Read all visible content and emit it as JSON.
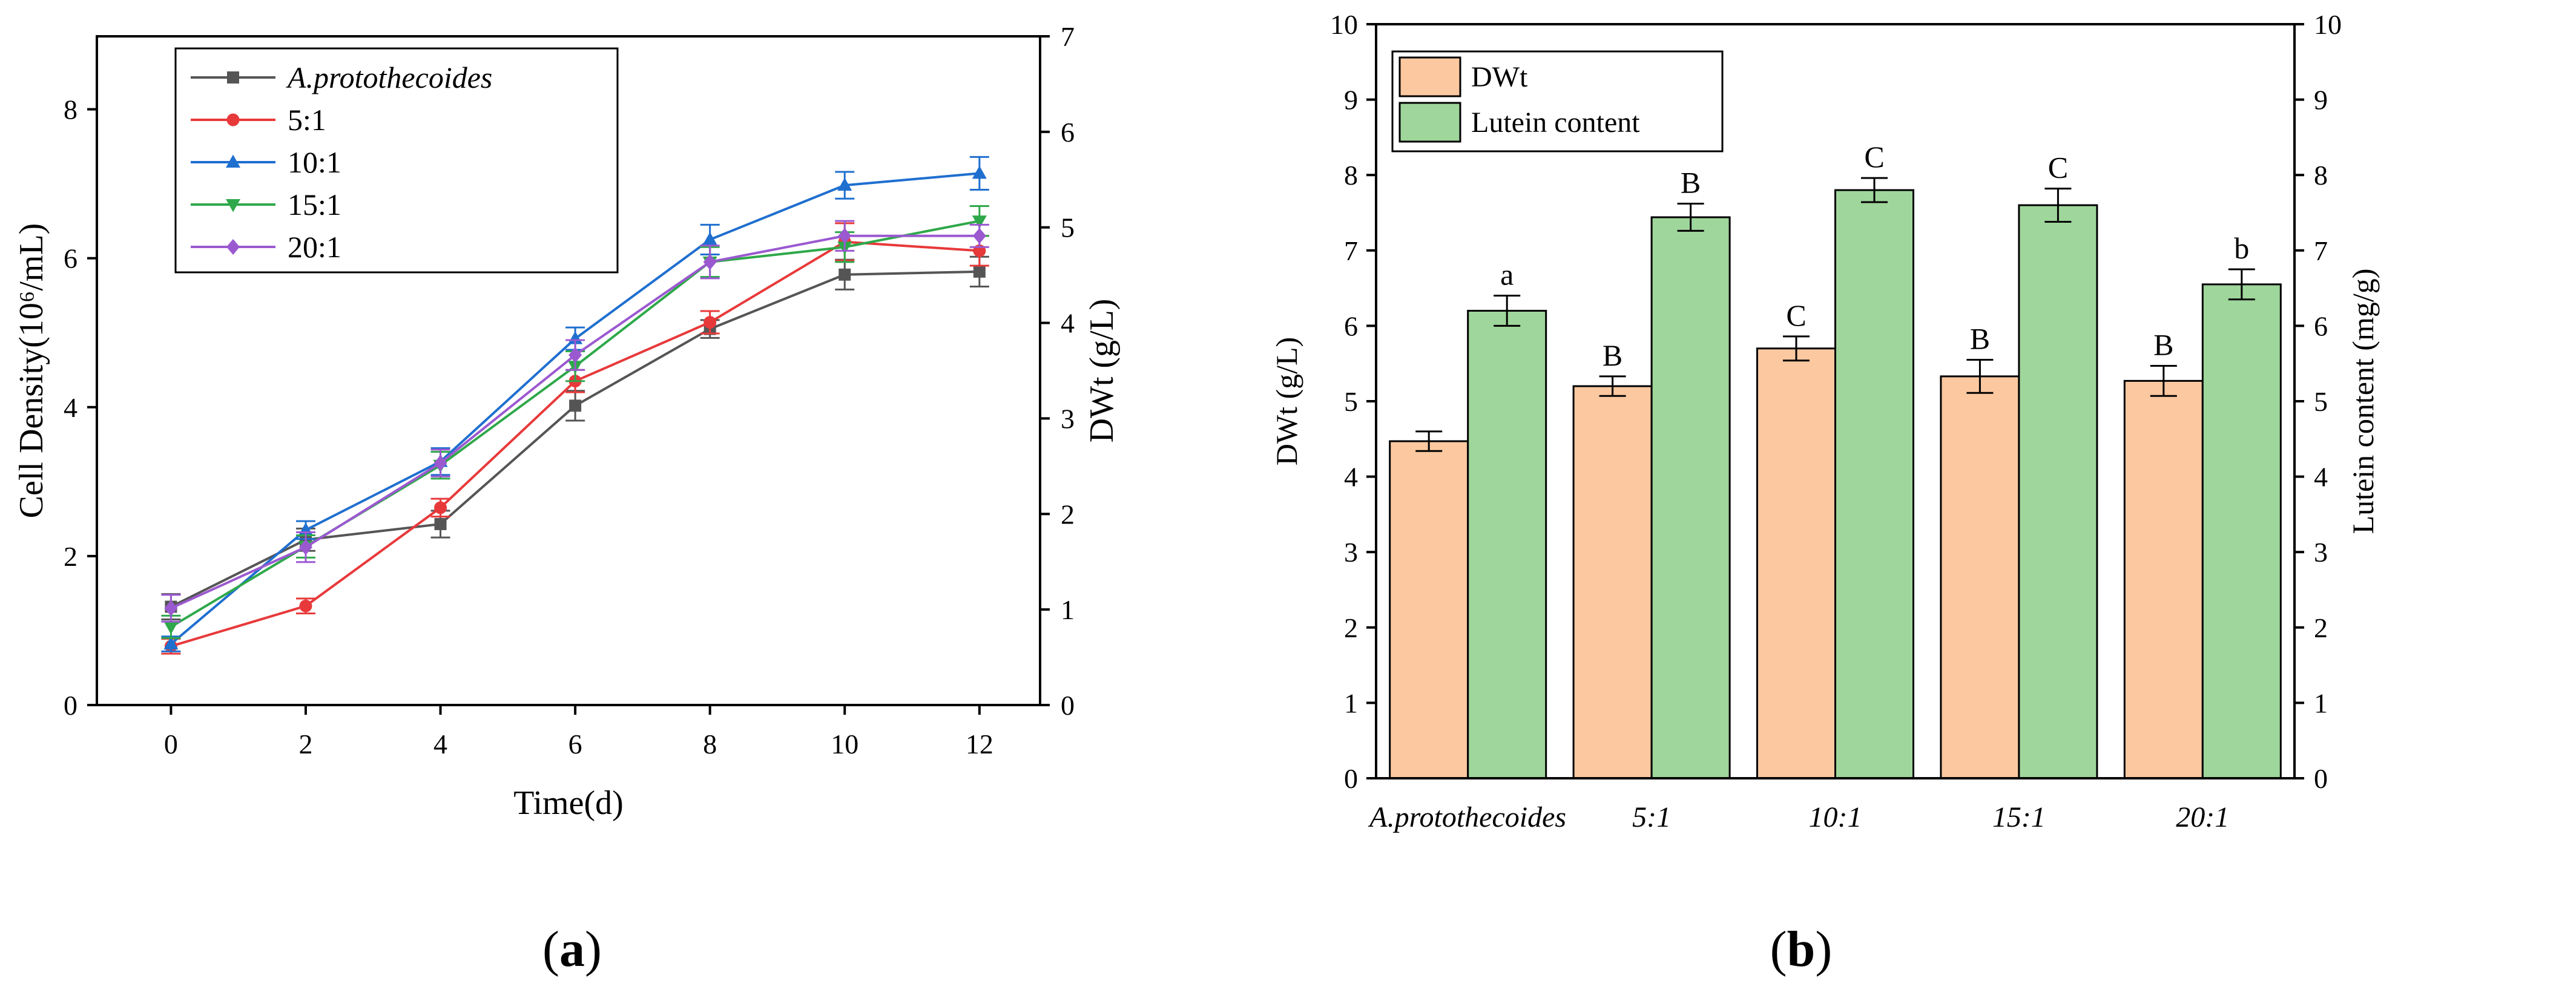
{
  "panels": {
    "a": {
      "open": "(",
      "letter": "a",
      "close": ")"
    },
    "b": {
      "open": "(",
      "letter": "b",
      "close": ")"
    }
  },
  "chart_data": [
    {
      "id": "a",
      "type": "line",
      "title": "",
      "xlabel": "Time(d)",
      "ylabel_left": "Cell Density(10⁶/mL)",
      "ylabel_right": "DWt (g/L)",
      "xlim": [
        -1.1,
        12.9
      ],
      "ylim_left": [
        0,
        8.98
      ],
      "ylim_right": [
        0,
        7
      ],
      "x_ticks": [
        0,
        2,
        4,
        6,
        8,
        10,
        12
      ],
      "y_ticks_left": [
        0,
        2,
        4,
        6,
        8
      ],
      "y_ticks_right": [
        0,
        1,
        2,
        3,
        4,
        5,
        6,
        7
      ],
      "legend_position": "top-left",
      "x": [
        0,
        2,
        4,
        6,
        8,
        10,
        12
      ],
      "series": [
        {
          "name": "A.protothecoides",
          "italic": true,
          "color": "#555555",
          "marker": "square",
          "values": [
            1.32,
            2.22,
            2.43,
            4.02,
            5.05,
            5.78,
            5.82
          ],
          "errors": [
            0.17,
            0.15,
            0.18,
            0.2,
            0.12,
            0.2,
            0.2
          ]
        },
        {
          "name": "5:1",
          "italic": false,
          "color": "#e8393a",
          "marker": "circle",
          "values": [
            0.79,
            1.33,
            2.65,
            4.35,
            5.14,
            6.22,
            6.1
          ],
          "errors": [
            0.1,
            0.1,
            0.12,
            0.15,
            0.15,
            0.25,
            0.2
          ]
        },
        {
          "name": "10:1",
          "italic": false,
          "color": "#1f6fcf",
          "marker": "triangle-up",
          "values": [
            0.82,
            2.35,
            3.27,
            4.92,
            6.25,
            6.98,
            7.14
          ],
          "errors": [
            0.1,
            0.12,
            0.18,
            0.15,
            0.2,
            0.18,
            0.22
          ]
        },
        {
          "name": "15:1",
          "italic": false,
          "color": "#2ea84a",
          "marker": "triangle-down",
          "values": [
            1.05,
            2.13,
            3.22,
            4.55,
            5.95,
            6.15,
            6.5
          ],
          "errors": [
            0.15,
            0.15,
            0.18,
            0.2,
            0.2,
            0.2,
            0.2
          ]
        },
        {
          "name": "20:1",
          "italic": false,
          "color": "#9b59d0",
          "marker": "diamond",
          "values": [
            1.3,
            2.12,
            3.25,
            4.7,
            5.95,
            6.3,
            6.3
          ],
          "errors": [
            0.18,
            0.2,
            0.18,
            0.2,
            0.22,
            0.2,
            0.15
          ]
        }
      ]
    },
    {
      "id": "b",
      "type": "bar",
      "title": "",
      "xlabel": "",
      "ylabel_left": "DWt (g/L)",
      "ylabel_right": "Lutein content (mg/g)",
      "ylim_left": [
        0,
        10
      ],
      "ylim_right": [
        0,
        10
      ],
      "y_ticks_left": [
        0,
        1,
        2,
        3,
        4,
        5,
        6,
        7,
        8,
        9,
        10
      ],
      "y_ticks_right": [
        0,
        1,
        2,
        3,
        4,
        5,
        6,
        7,
        8,
        9,
        10
      ],
      "legend_position": "top-left",
      "categories": [
        "A.protothecoides",
        "5:1",
        "10:1",
        "15:1",
        "20:1"
      ],
      "series": [
        {
          "name": "DWt",
          "color": "#fbc8a0",
          "values": [
            4.47,
            5.2,
            5.7,
            5.33,
            5.27
          ],
          "errors": [
            0.13,
            0.13,
            0.16,
            0.22,
            0.2
          ],
          "sig_labels": [
            "",
            "B",
            "C",
            "B",
            "B"
          ]
        },
        {
          "name": "Lutein content",
          "color": "#9fd69b",
          "values": [
            6.2,
            7.44,
            7.8,
            7.6,
            6.55
          ],
          "errors": [
            0.2,
            0.18,
            0.16,
            0.22,
            0.2
          ],
          "sig_labels": [
            "a",
            "B",
            "C",
            "C",
            "b"
          ]
        }
      ]
    }
  ]
}
